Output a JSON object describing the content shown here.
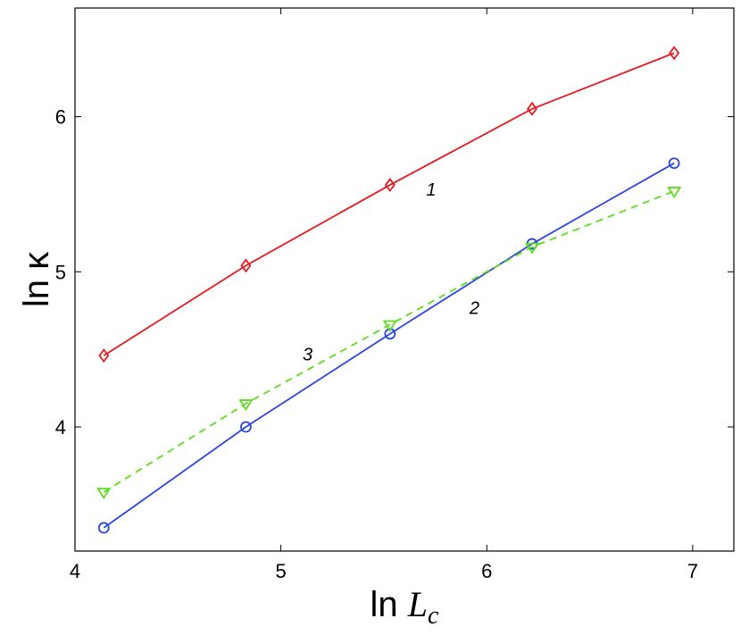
{
  "chart_data": {
    "type": "line",
    "xlabel": {
      "prefix": "ln ",
      "var": "L",
      "sub": "c"
    },
    "ylabel": "ln κ",
    "xlim": [
      4.0,
      7.2
    ],
    "ylim": [
      3.2,
      6.7
    ],
    "xticks": [
      4,
      5,
      6,
      7
    ],
    "yticks": [
      4,
      5,
      6
    ],
    "xtick_labels": [
      "4",
      "5",
      "6",
      "7"
    ],
    "ytick_labels": [
      "4",
      "5",
      "6"
    ],
    "grid": false,
    "series": [
      {
        "name": "1",
        "color": "#e8191e",
        "marker": "diamond",
        "dash": false,
        "x": [
          4.14,
          4.83,
          5.53,
          6.22,
          6.91
        ],
        "y": [
          4.46,
          5.04,
          5.56,
          6.05,
          6.41
        ],
        "label_pos": {
          "x": 5.73,
          "y": 5.53
        }
      },
      {
        "name": "2",
        "color": "#2c46e0",
        "marker": "circle",
        "dash": false,
        "x": [
          4.14,
          4.83,
          5.53,
          6.22,
          6.91
        ],
        "y": [
          3.35,
          4.0,
          4.6,
          5.18,
          5.7
        ],
        "label_pos": {
          "x": 5.94,
          "y": 4.77
        }
      },
      {
        "name": "3",
        "color": "#5ddd1c",
        "marker": "triangle-down",
        "dash": true,
        "x": [
          4.14,
          4.83,
          5.53,
          6.22,
          6.91
        ],
        "y": [
          3.58,
          4.15,
          4.66,
          5.16,
          5.52
        ],
        "label_pos": {
          "x": 5.13,
          "y": 4.47
        }
      }
    ]
  }
}
